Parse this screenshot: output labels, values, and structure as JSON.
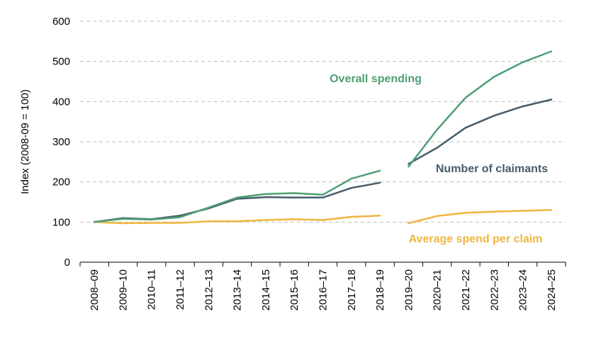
{
  "chart_data": {
    "type": "line",
    "title": "",
    "xlabel": "",
    "ylabel": "Index (2008-09 = 100)",
    "ylim": [
      0,
      600
    ],
    "yticks": [
      "0",
      "100",
      "200",
      "300",
      "400",
      "500",
      "600"
    ],
    "grid": true,
    "legend": "direct labels",
    "categories": [
      "2008–09",
      "2009–10",
      "2010–11",
      "2011–12",
      "2012–13",
      "2013–14",
      "2014–15",
      "2015–16",
      "2016–17",
      "2017–18",
      "2018–19",
      "2019–20",
      "2020–21",
      "2021–22",
      "2022–23",
      "2023–24",
      "2024–25"
    ],
    "series": [
      {
        "name": "Overall spending",
        "color": "#4E9E73",
        "values": [
          100,
          108,
          106,
          112,
          136,
          161,
          170,
          172,
          168,
          208,
          228,
          null,
          null,
          null,
          null,
          null,
          null
        ],
        "values_b": [
          null,
          null,
          null,
          null,
          null,
          null,
          null,
          null,
          null,
          null,
          null,
          238,
          330,
          410,
          462,
          498,
          525
        ]
      },
      {
        "name": "Number of claimants",
        "color": "#465C6B",
        "values": [
          100,
          110,
          107,
          116,
          134,
          158,
          162,
          161,
          161,
          185,
          198,
          null,
          null,
          null,
          null,
          null,
          null
        ],
        "values_b": [
          null,
          null,
          null,
          null,
          null,
          null,
          null,
          null,
          null,
          null,
          null,
          245,
          285,
          335,
          365,
          388,
          405
        ]
      },
      {
        "name": "Average spend per claim",
        "color": "#EDB640",
        "values": [
          100,
          97,
          98,
          98,
          102,
          102,
          105,
          107,
          105,
          113,
          116,
          null,
          null,
          null,
          null,
          null,
          null
        ],
        "values_b": [
          null,
          null,
          null,
          null,
          null,
          null,
          null,
          null,
          null,
          null,
          null,
          97,
          115,
          123,
          126,
          128,
          130
        ]
      }
    ]
  }
}
